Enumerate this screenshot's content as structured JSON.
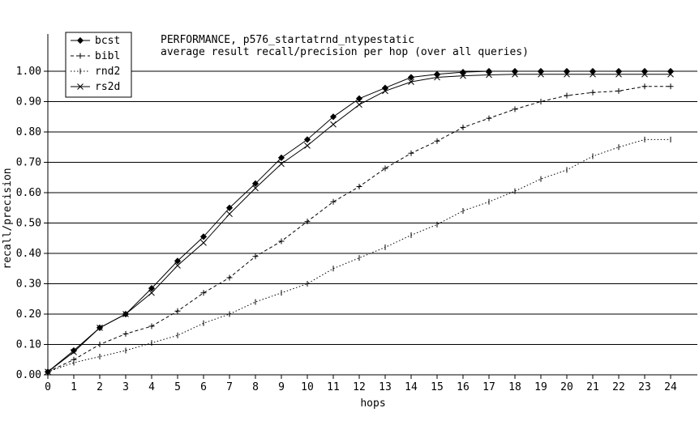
{
  "chart_data": {
    "type": "line",
    "title": [
      "PERFORMANCE, p576_startatrnd_ntypestatic",
      "average result recall/precision per hop (over all queries)"
    ],
    "xlabel": "hops",
    "ylabel": "recall/precision",
    "x": [
      0,
      1,
      2,
      3,
      4,
      5,
      6,
      7,
      8,
      9,
      10,
      11,
      12,
      13,
      14,
      15,
      16,
      17,
      18,
      19,
      20,
      21,
      22,
      23,
      24
    ],
    "xlim": [
      0,
      24
    ],
    "ylim": [
      0,
      1.05
    ],
    "xticks": [
      "0",
      "1",
      "2",
      "3",
      "4",
      "5",
      "6",
      "7",
      "8",
      "9",
      "10",
      "11",
      "12",
      "13",
      "14",
      "15",
      "16",
      "17",
      "18",
      "19",
      "20",
      "21",
      "22",
      "23",
      "24"
    ],
    "yticks": [
      {
        "value": 0.0,
        "label": "0.00"
      },
      {
        "value": 0.1,
        "label": "0.10"
      },
      {
        "value": 0.2,
        "label": "0.20"
      },
      {
        "value": 0.3,
        "label": "0.30"
      },
      {
        "value": 0.4,
        "label": "0.40"
      },
      {
        "value": 0.5,
        "label": "0.50"
      },
      {
        "value": 0.6,
        "label": "0.60"
      },
      {
        "value": 0.7,
        "label": "0.70"
      },
      {
        "value": 0.8,
        "label": "0.80"
      },
      {
        "value": 0.9,
        "label": "0.90"
      },
      {
        "value": 1.0,
        "label": "1.00"
      }
    ],
    "grid": "horizontal",
    "legend_position": "top-left",
    "series": [
      {
        "name": "bcst",
        "marker": "diamond",
        "dash": "solid",
        "values": [
          0.01,
          0.08,
          0.155,
          0.2,
          0.285,
          0.375,
          0.455,
          0.55,
          0.63,
          0.715,
          0.775,
          0.85,
          0.91,
          0.945,
          0.98,
          0.99,
          0.997,
          1.0,
          1.0,
          1.0,
          1.0,
          1.0,
          1.0,
          1.0,
          1.0
        ]
      },
      {
        "name": "bibl",
        "marker": "plus",
        "dash": "dashed",
        "values": [
          0.01,
          0.05,
          0.1,
          0.135,
          0.16,
          0.21,
          0.27,
          0.32,
          0.39,
          0.44,
          0.505,
          0.57,
          0.62,
          0.68,
          0.73,
          0.77,
          0.815,
          0.845,
          0.875,
          0.9,
          0.92,
          0.93,
          0.935,
          0.95,
          0.95
        ]
      },
      {
        "name": "rnd2",
        "marker": "tick",
        "dash": "dotted",
        "values": [
          0.01,
          0.04,
          0.06,
          0.08,
          0.105,
          0.13,
          0.17,
          0.2,
          0.24,
          0.27,
          0.3,
          0.35,
          0.385,
          0.42,
          0.46,
          0.495,
          0.54,
          0.57,
          0.605,
          0.645,
          0.675,
          0.72,
          0.75,
          0.775,
          0.775
        ]
      },
      {
        "name": "rs2d",
        "marker": "x",
        "dash": "solid",
        "values": [
          0.01,
          0.075,
          0.155,
          0.2,
          0.27,
          0.36,
          0.435,
          0.53,
          0.615,
          0.695,
          0.755,
          0.825,
          0.89,
          0.935,
          0.965,
          0.98,
          0.985,
          0.988,
          0.99,
          0.99,
          0.99,
          0.99,
          0.99,
          0.99,
          0.99
        ]
      }
    ]
  }
}
